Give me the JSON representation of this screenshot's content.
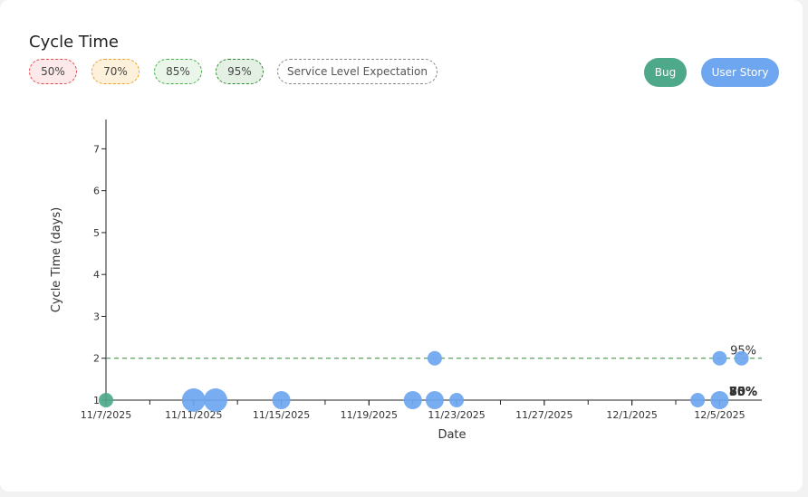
{
  "header": {
    "title": "Cycle Time",
    "percentile_toggles": [
      "50%",
      "70%",
      "85%",
      "95%"
    ],
    "sle_toggle": "Service Level Expectation",
    "type_buttons": {
      "bug": "Bug",
      "user_story": "User Story"
    }
  },
  "colors": {
    "bug": "#4ea88a",
    "user_story": "#6ea6f0",
    "p50": "#e34a4a",
    "p70": "#f0a020",
    "p85": "#46b046",
    "p95": "#2e8b2e"
  },
  "chart_data": {
    "type": "scatter",
    "xlabel": "Date",
    "ylabel": "Cycle Time (days)",
    "x_scale": "time",
    "x_range": [
      "2025-11-07",
      "2025-12-06"
    ],
    "x_ticks": [
      "11/7/2025",
      "11/11/2025",
      "11/15/2025",
      "11/19/2025",
      "11/23/2025",
      "11/27/2025",
      "12/1/2025",
      "12/5/2025"
    ],
    "ylim": [
      1,
      7.7
    ],
    "y_ticks": [
      1,
      2,
      3,
      4,
      5,
      6,
      7
    ],
    "grid": false,
    "series": [
      {
        "name": "Bug",
        "points": [
          {
            "date": "2025-11-07",
            "cycle_time": 1,
            "count": 1
          }
        ]
      },
      {
        "name": "User Story",
        "points": [
          {
            "date": "2025-11-11",
            "cycle_time": 1,
            "count": 3
          },
          {
            "date": "2025-11-12",
            "cycle_time": 1,
            "count": 3
          },
          {
            "date": "2025-11-15",
            "cycle_time": 1,
            "count": 2
          },
          {
            "date": "2025-11-21",
            "cycle_time": 1,
            "count": 2
          },
          {
            "date": "2025-11-22",
            "cycle_time": 1,
            "count": 2
          },
          {
            "date": "2025-11-22",
            "cycle_time": 2,
            "count": 1
          },
          {
            "date": "2025-11-23",
            "cycle_time": 1,
            "count": 1
          },
          {
            "date": "2025-12-04",
            "cycle_time": 1,
            "count": 1
          },
          {
            "date": "2025-12-05",
            "cycle_time": 1,
            "count": 2
          },
          {
            "date": "2025-12-05",
            "cycle_time": 2,
            "count": 1
          },
          {
            "date": "2025-12-06",
            "cycle_time": 2,
            "count": 1
          }
        ]
      }
    ],
    "percentile_lines": [
      {
        "label": "95%",
        "value": 2,
        "dashed": true,
        "color": "#2e8b2e"
      },
      {
        "label": "50%",
        "value": 1,
        "dashed": false,
        "color": "#333333"
      },
      {
        "label": "70%",
        "value": 1,
        "dashed": false,
        "color": "#333333"
      },
      {
        "label": "85%",
        "value": 1,
        "dashed": false,
        "color": "#333333"
      }
    ]
  }
}
